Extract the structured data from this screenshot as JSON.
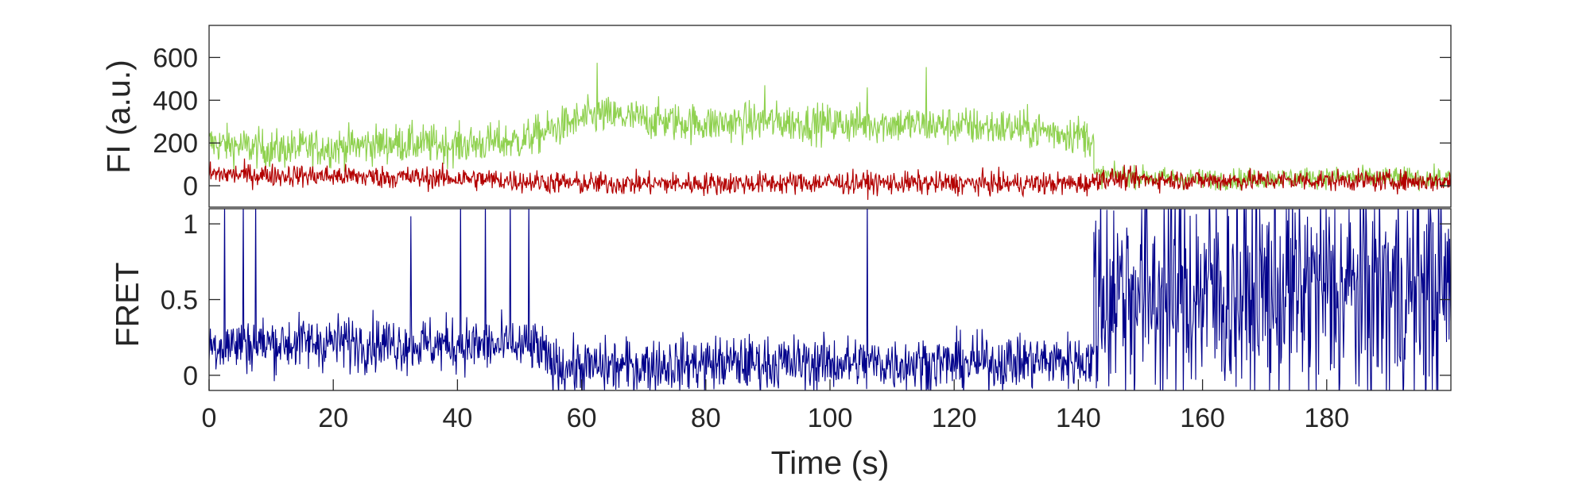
{
  "chart_data": [
    {
      "type": "line",
      "ylabel": "FI (a.u.)",
      "xlim": [
        0,
        200
      ],
      "ylim": [
        -100,
        750
      ],
      "yticks": [
        0,
        200,
        400,
        600
      ],
      "grid": false,
      "legend": "none",
      "series": [
        {
          "color": "#8fd14f",
          "segments": [
            {
              "x": [
                0,
                10,
                20,
                30,
                40,
                50,
                55,
                60,
                63,
                70,
                80,
                90,
                100,
                110,
                120,
                130,
                140,
                142.5
              ],
              "y": [
                200,
                170,
                180,
                200,
                190,
                210,
                260,
                310,
                330,
                310,
                290,
                300,
                290,
                290,
                280,
                270,
                240,
                220
              ],
              "noise": 65
            },
            {
              "x": [
                142.5,
                160,
                180,
                200
              ],
              "y": [
                50,
                30,
                40,
                35
              ],
              "noise": 35
            }
          ],
          "spikes": [
            [
              62.5,
              575
            ],
            [
              115.5,
              555
            ],
            [
              89.5,
              470
            ],
            [
              106,
              460
            ]
          ]
        },
        {
          "color": "#b30000",
          "segments": [
            {
              "x": [
                0,
                20,
                40,
                60,
                80,
                100,
                120,
                140,
                142.5
              ],
              "y": [
                55,
                45,
                35,
                10,
                10,
                15,
                10,
                10,
                10
              ],
              "noise": 38
            },
            {
              "x": [
                142.5,
                160,
                180,
                200
              ],
              "y": [
                35,
                25,
                25,
                20
              ],
              "noise": 35
            }
          ],
          "spikes": []
        }
      ]
    },
    {
      "type": "line",
      "ylabel": "FRET",
      "xlabel": "Time (s)",
      "xlim": [
        0,
        200
      ],
      "ylim": [
        -0.1,
        1.1
      ],
      "xticks": [
        0,
        20,
        40,
        60,
        80,
        100,
        120,
        140,
        160,
        180
      ],
      "yticks": [
        0,
        0.5,
        1
      ],
      "grid": false,
      "legend": "none",
      "series": [
        {
          "color": "#00008b",
          "segments": [
            {
              "x": [
                0,
                20,
                40,
                53,
                55,
                60,
                80,
                100,
                120,
                140,
                142.5
              ],
              "y": [
                0.2,
                0.22,
                0.2,
                0.18,
                0.07,
                0.05,
                0.08,
                0.08,
                0.08,
                0.1,
                0.1
              ],
              "noise": 0.13
            },
            {
              "x": [
                142.5,
                160,
                180,
                200
              ],
              "y": [
                0.55,
                0.55,
                0.55,
                0.55
              ],
              "noise": 0.55
            }
          ],
          "spikes": [
            [
              2.5,
              1.2
            ],
            [
              5.5,
              1.2
            ],
            [
              7.5,
              1.2
            ],
            [
              32.5,
              1.05
            ],
            [
              40.5,
              1.2
            ],
            [
              44.5,
              1.2
            ],
            [
              48.5,
              1.2
            ],
            [
              51.5,
              1.2
            ],
            [
              106,
              1.2
            ]
          ]
        }
      ]
    }
  ]
}
